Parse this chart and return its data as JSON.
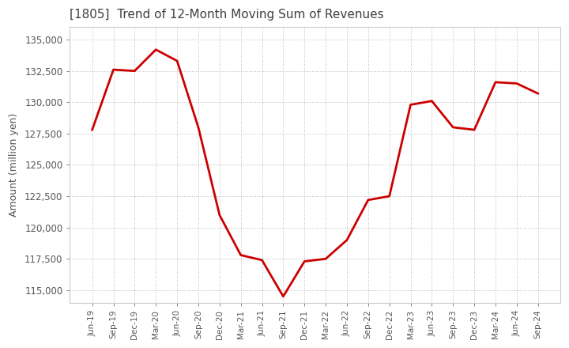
{
  "title": "[1805]  Trend of 12-Month Moving Sum of Revenues",
  "ylabel": "Amount (million yen)",
  "line_color": "#cc0000",
  "background_color": "#ffffff",
  "grid_color": "#bbbbbb",
  "title_color": "#404040",
  "axis_color": "#555555",
  "ylim": [
    114000,
    136000
  ],
  "yticks": [
    115000,
    117500,
    120000,
    122500,
    125000,
    127500,
    130000,
    132500,
    135000
  ],
  "dates": [
    "Jun-19",
    "Sep-19",
    "Dec-19",
    "Mar-20",
    "Jun-20",
    "Sep-20",
    "Dec-20",
    "Mar-21",
    "Jun-21",
    "Sep-21",
    "Dec-21",
    "Mar-22",
    "Jun-22",
    "Sep-22",
    "Dec-22",
    "Mar-23",
    "Jun-23",
    "Sep-23",
    "Dec-23",
    "Mar-24",
    "Jun-24",
    "Sep-24"
  ],
  "values": [
    127800,
    132600,
    132500,
    134200,
    133300,
    128000,
    121000,
    117800,
    117400,
    114500,
    117300,
    117500,
    119000,
    122200,
    122500,
    129800,
    130100,
    128000,
    127800,
    131600,
    131500,
    130700
  ]
}
